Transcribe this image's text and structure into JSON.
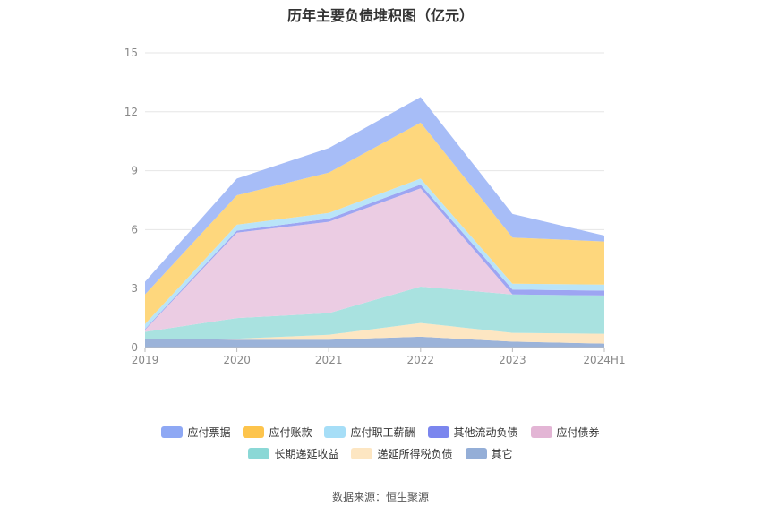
{
  "chart_data": {
    "type": "area",
    "title": "历年主要负债堆积图（亿元）",
    "x": [
      "2019",
      "2020",
      "2021",
      "2022",
      "2023",
      "2024H1"
    ],
    "ylim": [
      0,
      15
    ],
    "yticks": [
      0,
      3,
      6,
      9,
      12,
      15
    ],
    "stacked": true,
    "grid": true,
    "legend_position": "bottom",
    "series": [
      {
        "name": "其它",
        "color": "#9bb3d9",
        "values": [
          0.45,
          0.4,
          0.4,
          0.55,
          0.3,
          0.2
        ]
      },
      {
        "name": "递延所得税负债",
        "color": "#fde6c2",
        "values": [
          0.0,
          0.05,
          0.25,
          0.7,
          0.45,
          0.5
        ]
      },
      {
        "name": "长期递延收益",
        "color": "#a9e2e0",
        "values": [
          0.35,
          1.05,
          1.1,
          1.85,
          1.95,
          1.95
        ]
      },
      {
        "name": "应付债券",
        "color": "#ebcce3",
        "values": [
          0.1,
          4.35,
          4.65,
          5.0,
          0.0,
          0.0
        ]
      },
      {
        "name": "其他流动负债",
        "color": "#9da5f2",
        "values": [
          0.05,
          0.1,
          0.15,
          0.2,
          0.25,
          0.25
        ]
      },
      {
        "name": "应付职工薪酬",
        "color": "#b9e4f8",
        "values": [
          0.25,
          0.3,
          0.3,
          0.3,
          0.3,
          0.3
        ]
      },
      {
        "name": "应付账款",
        "color": "#fed77d",
        "values": [
          1.5,
          1.5,
          2.05,
          2.85,
          2.35,
          2.2
        ]
      },
      {
        "name": "应付票据",
        "color": "#a7bdf7",
        "values": [
          0.65,
          0.85,
          1.25,
          1.3,
          1.2,
          0.3
        ]
      }
    ]
  },
  "legend_rows": [
    [
      {
        "name": "应付票据",
        "color": "#8ea8f4"
      },
      {
        "name": "应付账款",
        "color": "#fdc44c"
      },
      {
        "name": "应付职工薪酬",
        "color": "#a6def7"
      },
      {
        "name": "其他流动负债",
        "color": "#7b86ee"
      },
      {
        "name": "应付债券",
        "color": "#e3b5d5"
      }
    ],
    [
      {
        "name": "长期递延收益",
        "color": "#8bd8d6"
      },
      {
        "name": "递延所得税负债",
        "color": "#fde6c2"
      },
      {
        "name": "其它",
        "color": "#94aed7"
      }
    ]
  ],
  "source": "数据来源：恒生聚源"
}
